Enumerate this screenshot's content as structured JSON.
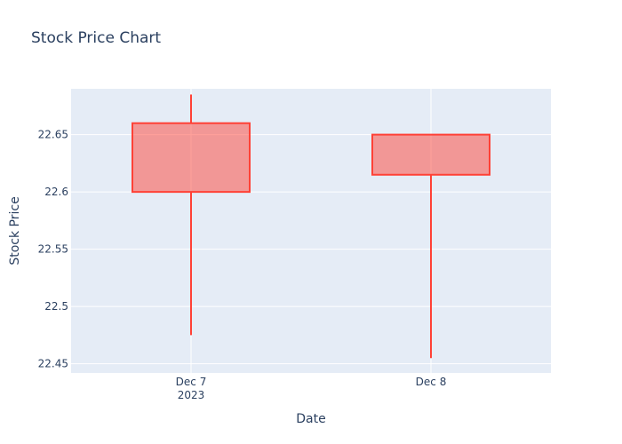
{
  "chart_data": {
    "type": "candlestick",
    "title": "Stock Price Chart",
    "xlabel": "Date",
    "ylabel": "Stock Price",
    "x_tick_labels": [
      "Dec 7\n2023",
      "Dec 8"
    ],
    "y_ticks": [
      22.45,
      22.5,
      22.55,
      22.6,
      22.65
    ],
    "y_tick_labels": [
      "22.45",
      "22.5",
      "22.55",
      "22.6",
      "22.65"
    ],
    "ylim": [
      22.442,
      22.69
    ],
    "grid": true,
    "colors": {
      "plot_background": "#e5ecf6",
      "grid": "#ffffff",
      "increasing_line": "#ff4136",
      "increasing_fill": "rgba(255,65,54,0.5)",
      "text": "#2a3f5f"
    },
    "candles": [
      {
        "date": "2023-12-07",
        "open": 22.6,
        "high": 22.685,
        "low": 22.475,
        "close": 22.66
      },
      {
        "date": "2023-12-08",
        "open": 22.615,
        "high": 22.65,
        "low": 22.455,
        "close": 22.65
      }
    ]
  }
}
